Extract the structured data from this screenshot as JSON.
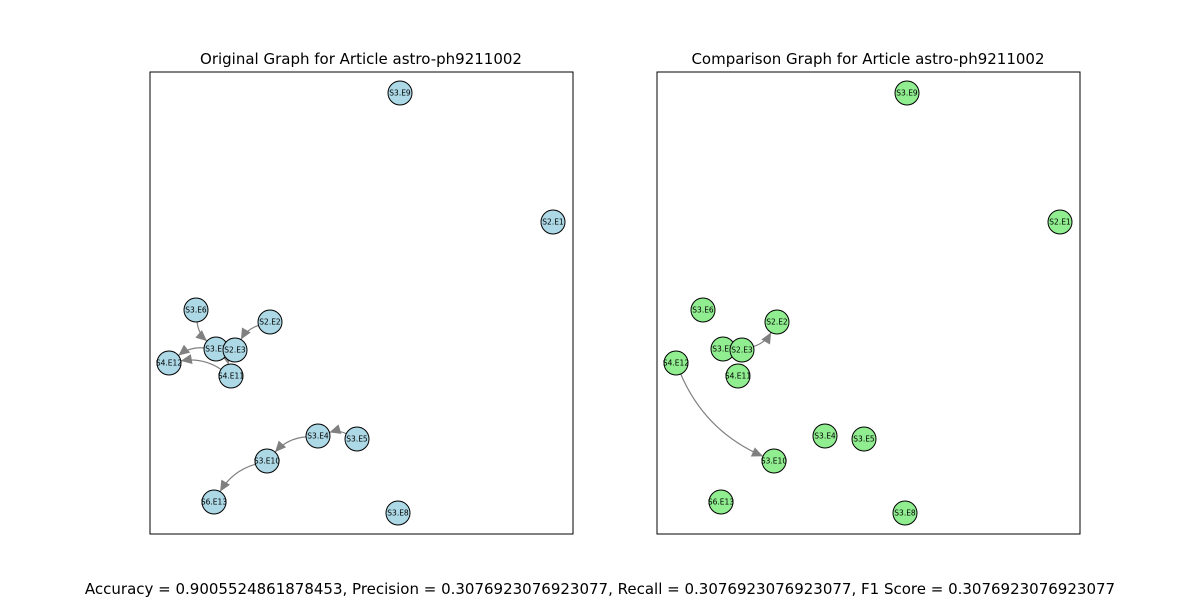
{
  "panels": [
    {
      "title": "Original Graph for Article astro-ph9211002",
      "node_color": "#add8e6",
      "nodes": [
        {
          "id": "S3.E9"
        },
        {
          "id": "S2.E1"
        },
        {
          "id": "S3.E6"
        },
        {
          "id": "S2.E2"
        },
        {
          "id": "S3.E7"
        },
        {
          "id": "S2.E3"
        },
        {
          "id": "S4.E12"
        },
        {
          "id": "S4.E11"
        },
        {
          "id": "S3.E4"
        },
        {
          "id": "S3.E5"
        },
        {
          "id": "S3.E10"
        },
        {
          "id": "S6.E13"
        },
        {
          "id": "S3.E8"
        }
      ],
      "edges": [
        {
          "from": "S3.E6",
          "to": "S3.E7"
        },
        {
          "from": "S2.E2",
          "to": "S2.E3"
        },
        {
          "from": "S3.E7",
          "to": "S4.E12"
        },
        {
          "from": "S4.E11",
          "to": "S4.E12"
        },
        {
          "from": "S2.E3",
          "to": "S4.E11"
        },
        {
          "from": "S3.E5",
          "to": "S3.E4"
        },
        {
          "from": "S3.E4",
          "to": "S3.E10"
        },
        {
          "from": "S3.E10",
          "to": "S6.E13"
        }
      ]
    },
    {
      "title": "Comparison Graph for Article astro-ph9211002",
      "node_color": "#90ee90",
      "nodes": [
        {
          "id": "S3.E9"
        },
        {
          "id": "S2.E1"
        },
        {
          "id": "S3.E6"
        },
        {
          "id": "S2.E2"
        },
        {
          "id": "S3.E7"
        },
        {
          "id": "S2.E3"
        },
        {
          "id": "S4.E12"
        },
        {
          "id": "S4.E11"
        },
        {
          "id": "S3.E4"
        },
        {
          "id": "S3.E5"
        },
        {
          "id": "S3.E10"
        },
        {
          "id": "S6.E13"
        },
        {
          "id": "S3.E8"
        }
      ],
      "edges": [
        {
          "from": "S2.E3",
          "to": "S2.E2"
        },
        {
          "from": "S4.E12",
          "to": "S3.E10"
        }
      ]
    }
  ],
  "footer": "Accuracy = 0.9005524861878453, Precision = 0.3076923076923077, Recall = 0.3076923076923077, F1 Score = 0.3076923076923077",
  "edge_color": "#808080"
}
